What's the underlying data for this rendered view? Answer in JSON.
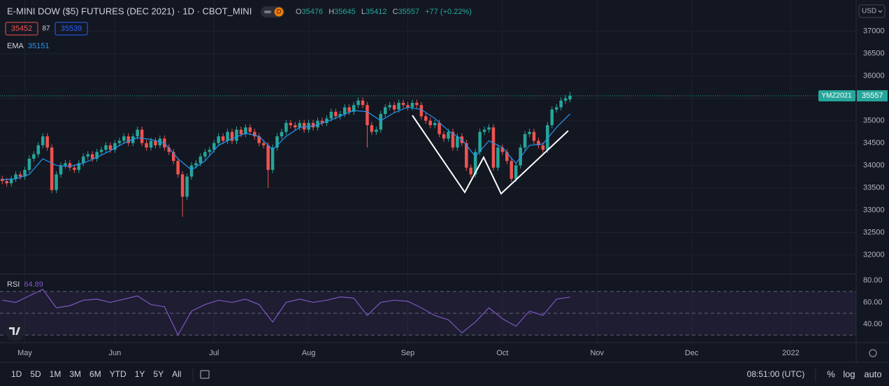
{
  "header": {
    "title": "E-MINI DOW ($5) FUTURES (DEC 2021) · 1D · CBOT_MINI",
    "badge": "D",
    "ohlc_labels": [
      "O",
      "H",
      "L",
      "C"
    ],
    "change": "+77 (+0.22%)",
    "bid": 35452,
    "spread": 87,
    "ask": 35539,
    "currency": "USD"
  },
  "chart_data": {
    "type": "candlestick",
    "symbol_label": "YMZ2021",
    "up_color": "#26a69a",
    "down_color": "#ef5350",
    "xlim": [
      -0.5,
      189.5
    ],
    "ylim": [
      31600,
      37700
    ],
    "yticks": [
      32000,
      32500,
      33000,
      33500,
      34000,
      34500,
      35000,
      35500,
      36000,
      36500,
      37000
    ],
    "xticks": [
      {
        "value": 5,
        "label": "May"
      },
      {
        "value": 25,
        "label": "Jun"
      },
      {
        "value": 47,
        "label": "Jul"
      },
      {
        "value": 68,
        "label": "Aug"
      },
      {
        "value": 90,
        "label": "Sep"
      },
      {
        "value": 111,
        "label": "Oct"
      },
      {
        "value": 132,
        "label": "Nov"
      },
      {
        "value": 153,
        "label": "Dec"
      },
      {
        "value": 175,
        "label": "2022"
      }
    ],
    "candles": [
      [
        33700,
        33770,
        33580,
        33650
      ],
      [
        33650,
        33720,
        33530,
        33600
      ],
      [
        33600,
        33770,
        33530,
        33700
      ],
      [
        33700,
        33870,
        33630,
        33800
      ],
      [
        33800,
        33870,
        33680,
        33750
      ],
      [
        33750,
        33970,
        33680,
        33900
      ],
      [
        33900,
        34220,
        33830,
        34150
      ],
      [
        34150,
        34320,
        34080,
        34250
      ],
      [
        34250,
        34520,
        34180,
        34450
      ],
      [
        34450,
        34720,
        34380,
        34650
      ],
      [
        34650,
        34720,
        34330,
        34400
      ],
      [
        34400,
        34470,
        33380,
        33450
      ],
      [
        33450,
        33870,
        33380,
        33800
      ],
      [
        33800,
        34070,
        33730,
        34000
      ],
      [
        34000,
        34120,
        33930,
        34050
      ],
      [
        34050,
        34120,
        33880,
        33950
      ],
      [
        33950,
        34020,
        33830,
        33900
      ],
      [
        33900,
        34120,
        33830,
        34050
      ],
      [
        34050,
        34270,
        33980,
        34200
      ],
      [
        34200,
        34320,
        34130,
        34250
      ],
      [
        34250,
        34320,
        34080,
        34150
      ],
      [
        34150,
        34370,
        34080,
        34300
      ],
      [
        34300,
        34420,
        34230,
        34350
      ],
      [
        34350,
        34520,
        34280,
        34450
      ],
      [
        34450,
        34520,
        34280,
        34350
      ],
      [
        34350,
        34570,
        34280,
        34500
      ],
      [
        34500,
        34620,
        34430,
        34550
      ],
      [
        34550,
        34720,
        34480,
        34650
      ],
      [
        34650,
        34720,
        34430,
        34500
      ],
      [
        34500,
        34720,
        34430,
        34650
      ],
      [
        34650,
        34870,
        34580,
        34800
      ],
      [
        34800,
        34870,
        34430,
        34500
      ],
      [
        34500,
        34570,
        34330,
        34400
      ],
      [
        34400,
        34620,
        34330,
        34550
      ],
      [
        34550,
        34620,
        34380,
        34450
      ],
      [
        34450,
        34670,
        34380,
        34600
      ],
      [
        34600,
        34670,
        34330,
        34400
      ],
      [
        34400,
        34470,
        34230,
        34300
      ],
      [
        34300,
        34370,
        34030,
        34100
      ],
      [
        34100,
        34170,
        33730,
        33800
      ],
      [
        33800,
        33870,
        32850,
        33300
      ],
      [
        33300,
        33820,
        33230,
        33750
      ],
      [
        33750,
        34070,
        33680,
        34000
      ],
      [
        34000,
        34120,
        33930,
        34050
      ],
      [
        34050,
        34270,
        33980,
        34200
      ],
      [
        34200,
        34370,
        34130,
        34300
      ],
      [
        34300,
        34420,
        34230,
        34350
      ],
      [
        34350,
        34570,
        34280,
        34500
      ],
      [
        34500,
        34720,
        34430,
        34650
      ],
      [
        34650,
        34720,
        34480,
        34550
      ],
      [
        34550,
        34820,
        34480,
        34750
      ],
      [
        34750,
        34820,
        34480,
        34550
      ],
      [
        34550,
        34870,
        34480,
        34800
      ],
      [
        34800,
        34870,
        34630,
        34700
      ],
      [
        34700,
        34920,
        34630,
        34850
      ],
      [
        34850,
        34920,
        34680,
        34750
      ],
      [
        34750,
        34820,
        34580,
        34650
      ],
      [
        34650,
        34720,
        34430,
        34500
      ],
      [
        34500,
        34570,
        34380,
        34450
      ],
      [
        34450,
        34520,
        33500,
        33900
      ],
      [
        33900,
        34470,
        33830,
        34400
      ],
      [
        34400,
        34720,
        34330,
        34650
      ],
      [
        34650,
        34820,
        34580,
        34750
      ],
      [
        34750,
        35020,
        34680,
        34950
      ],
      [
        34950,
        35020,
        34830,
        34900
      ],
      [
        34900,
        34970,
        34780,
        34850
      ],
      [
        34850,
        35020,
        34780,
        34950
      ],
      [
        34950,
        35020,
        34730,
        34800
      ],
      [
        34800,
        35020,
        34730,
        34950
      ],
      [
        34950,
        35020,
        34780,
        34850
      ],
      [
        34850,
        35070,
        34780,
        35000
      ],
      [
        35000,
        35070,
        34880,
        34950
      ],
      [
        34950,
        35120,
        34880,
        35050
      ],
      [
        35050,
        35270,
        34980,
        35200
      ],
      [
        35200,
        35270,
        35030,
        35100
      ],
      [
        35100,
        35220,
        35030,
        35150
      ],
      [
        35150,
        35370,
        35080,
        35300
      ],
      [
        35300,
        35370,
        35130,
        35200
      ],
      [
        35200,
        35420,
        35130,
        35350
      ],
      [
        35350,
        35520,
        35280,
        35450
      ],
      [
        35450,
        35520,
        35280,
        35350
      ],
      [
        35350,
        35420,
        34400,
        34900
      ],
      [
        34900,
        34970,
        34680,
        34750
      ],
      [
        34750,
        34870,
        34680,
        34800
      ],
      [
        34800,
        35220,
        34730,
        35150
      ],
      [
        35150,
        35370,
        35080,
        35300
      ],
      [
        35300,
        35420,
        35230,
        35350
      ],
      [
        35350,
        35420,
        35180,
        35250
      ],
      [
        35250,
        35470,
        35180,
        35400
      ],
      [
        35400,
        35470,
        35280,
        35350
      ],
      [
        35350,
        35420,
        35230,
        35300
      ],
      [
        35300,
        35470,
        35230,
        35400
      ],
      [
        35400,
        35470,
        35280,
        35350
      ],
      [
        35350,
        35420,
        35030,
        35100
      ],
      [
        35100,
        35170,
        34930,
        35000
      ],
      [
        35000,
        35070,
        34830,
        34900
      ],
      [
        34900,
        35020,
        34830,
        34950
      ],
      [
        34950,
        35020,
        34630,
        34700
      ],
      [
        34700,
        34770,
        34530,
        34600
      ],
      [
        34600,
        34820,
        34530,
        34750
      ],
      [
        34750,
        34820,
        34330,
        34400
      ],
      [
        34400,
        34720,
        34330,
        34650
      ],
      [
        34650,
        34720,
        34430,
        34500
      ],
      [
        34500,
        34570,
        33880,
        33950
      ],
      [
        33950,
        34020,
        33730,
        33800
      ],
      [
        33800,
        34370,
        33730,
        34300
      ],
      [
        34300,
        34820,
        34230,
        34750
      ],
      [
        34750,
        34870,
        34680,
        34800
      ],
      [
        34800,
        34920,
        34730,
        34850
      ],
      [
        34850,
        34920,
        33880,
        33950
      ],
      [
        33950,
        34470,
        33880,
        34400
      ],
      [
        34400,
        34470,
        34230,
        34300
      ],
      [
        34300,
        34370,
        34030,
        34100
      ],
      [
        34100,
        34170,
        33630,
        33700
      ],
      [
        33700,
        34070,
        33630,
        34000
      ],
      [
        34000,
        34470,
        33930,
        34400
      ],
      [
        34400,
        34770,
        34330,
        34700
      ],
      [
        34700,
        34820,
        34630,
        34750
      ],
      [
        34750,
        34820,
        34480,
        34550
      ],
      [
        34550,
        34620,
        34380,
        34450
      ],
      [
        34450,
        34520,
        34280,
        34350
      ],
      [
        34350,
        34970,
        34280,
        34900
      ],
      [
        34900,
        35320,
        34830,
        35250
      ],
      [
        35250,
        35370,
        35180,
        35300
      ],
      [
        35300,
        35520,
        35230,
        35450
      ],
      [
        35450,
        35570,
        35380,
        35500
      ],
      [
        35476,
        35645,
        35412,
        35557
      ]
    ],
    "ema": {
      "name": "EMA",
      "color": "#2196f3",
      "x": [
        0,
        3,
        6,
        9,
        12,
        15,
        18,
        21,
        24,
        27,
        30,
        33,
        36,
        39,
        42,
        45,
        48,
        51,
        54,
        57,
        60,
        63,
        66,
        69,
        72,
        75,
        78,
        81,
        84,
        87,
        90,
        93,
        96,
        99,
        102,
        105,
        108,
        111,
        114,
        117,
        120,
        123,
        126
      ],
      "values": [
        33680,
        33700,
        33800,
        34150,
        34000,
        33980,
        34050,
        34180,
        34330,
        34500,
        34620,
        34580,
        34500,
        34150,
        33900,
        34100,
        34450,
        34600,
        34720,
        34650,
        34350,
        34650,
        34850,
        34880,
        34980,
        35100,
        35230,
        35200,
        35000,
        35180,
        35300,
        35250,
        35050,
        34780,
        34580,
        34200,
        34550,
        34400,
        34050,
        34450,
        34480,
        34850,
        35151
      ]
    },
    "rsi": {
      "name": "RSI",
      "color": "#7e57c2",
      "ylim": [
        23,
        86
      ],
      "yticks": [
        {
          "value": 40,
          "label": "40.00"
        },
        {
          "value": 60,
          "label": "60.00"
        },
        {
          "value": 80,
          "label": "80.00"
        }
      ],
      "levels": [
        70,
        50,
        30
      ],
      "x": [
        0,
        3,
        6,
        9,
        12,
        15,
        18,
        21,
        24,
        27,
        30,
        33,
        36,
        39,
        42,
        45,
        48,
        51,
        54,
        57,
        60,
        63,
        66,
        69,
        72,
        75,
        78,
        81,
        84,
        87,
        90,
        93,
        96,
        99,
        102,
        105,
        108,
        111,
        114,
        117,
        120,
        123,
        126
      ],
      "values": [
        62,
        60,
        66,
        72,
        55,
        57,
        62,
        63,
        60,
        63,
        66,
        58,
        56,
        30,
        52,
        58,
        62,
        60,
        63,
        58,
        42,
        60,
        63,
        60,
        62,
        65,
        64,
        48,
        60,
        62,
        61,
        55,
        48,
        44,
        32,
        42,
        55,
        45,
        38,
        52,
        48,
        63,
        64.89
      ]
    }
  },
  "toolbar": {
    "ranges": [
      "1D",
      "5D",
      "1M",
      "3M",
      "6M",
      "YTD",
      "1Y",
      "5Y",
      "All"
    ],
    "time": "08:51:00 (UTC)",
    "options": [
      "%",
      "log",
      "auto"
    ]
  }
}
